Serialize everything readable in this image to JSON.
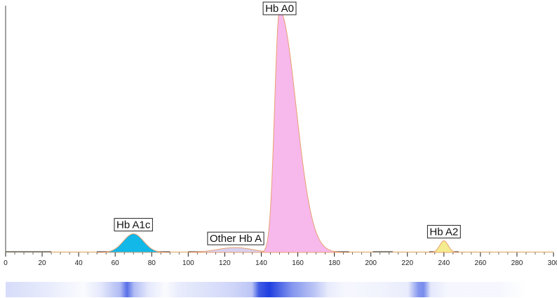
{
  "chart_data": {
    "type": "area",
    "title": "",
    "xlabel": "",
    "ylabel": "",
    "xlim": [
      0,
      300
    ],
    "ylim": [
      0,
      100
    ],
    "x_ticks": [
      "0",
      "20",
      "40",
      "60",
      "80",
      "100",
      "120",
      "140",
      "160",
      "180",
      "200",
      "220",
      "240",
      "260",
      "280",
      "300"
    ],
    "peaks": [
      {
        "name": "Hb A1c",
        "label": "Hb A1c",
        "center": 70,
        "height": 7.7,
        "width_left": 5.5,
        "width_right": 5.5,
        "start": 50,
        "end": 90,
        "color": "#12b8e8"
      },
      {
        "name": "Other Hb A",
        "label": "Other Hb A",
        "center": 126,
        "height": 2.0,
        "width_left": 10,
        "width_right": 9,
        "start": 100,
        "end": 145,
        "color": "#d9d0ef"
      },
      {
        "name": "Hb A0",
        "label": "Hb A0",
        "center": 150,
        "height": 100,
        "width_left": 2.7,
        "width_right": 9,
        "start": 135,
        "end": 188,
        "color": "#f7b8ec"
      },
      {
        "name": "Hb A2",
        "label": "Hb A2",
        "center": 240,
        "height": 4.8,
        "width_left": 2.3,
        "width_right": 2.3,
        "start": 232,
        "end": 248,
        "color": "#f4ec8e"
      }
    ],
    "band_color": "#1f3fe0",
    "grid": false,
    "legend": "none"
  }
}
